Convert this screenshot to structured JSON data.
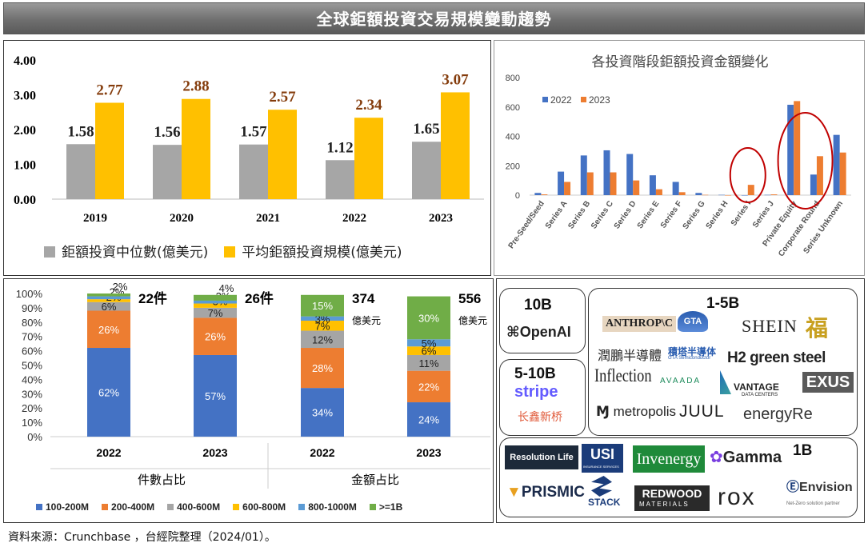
{
  "banner": {
    "title": "全球鉅額投資交易規模變動趨勢"
  },
  "source_note": "資料來源：Crunchbase ，台經院整理（2024/01）。",
  "chart_data": [
    {
      "type": "bar",
      "categories": [
        "2019",
        "2020",
        "2021",
        "2022",
        "2023"
      ],
      "series": [
        {
          "name": "鉅額投資中位數(億美元)",
          "color": "#a6a6a6",
          "values": [
            1.58,
            1.56,
            1.57,
            1.12,
            1.65
          ]
        },
        {
          "name": "平均鉅額投資規模(億美元)",
          "color": "#ffc000",
          "values": [
            2.77,
            2.88,
            2.57,
            2.34,
            3.07
          ]
        }
      ],
      "ylim": [
        0,
        4
      ],
      "yticks": [
        "0.00",
        "1.00",
        "2.00",
        "3.00",
        "4.00"
      ],
      "data_labels": [
        [
          "1.58",
          "1.56",
          "1.57",
          "1.12",
          "1.65"
        ],
        [
          "2.77",
          "2.88",
          "2.57",
          "2.34",
          "3.07"
        ]
      ],
      "label_colors": [
        "#222222",
        "#843c0c"
      ],
      "grid": false,
      "legend_position": "bottom"
    },
    {
      "type": "bar",
      "title": "各投資階段鉅額投資金額變化",
      "categories": [
        "Pre-Seed/Seed",
        "Series A",
        "Series B",
        "Series C",
        "Series D",
        "Series E",
        "Series F",
        "Series G",
        "Series H",
        "Series I",
        "Series J",
        "Private Equity",
        "Corporate Round",
        "Series Unknown"
      ],
      "series": [
        {
          "name": "2022",
          "color": "#4472c4",
          "values": [
            15,
            160,
            270,
            305,
            280,
            135,
            90,
            15,
            2,
            0,
            2,
            615,
            140,
            410
          ]
        },
        {
          "name": "2023",
          "color": "#ed7d31",
          "values": [
            5,
            90,
            155,
            155,
            100,
            40,
            20,
            2,
            0,
            70,
            5,
            640,
            265,
            290
          ]
        }
      ],
      "ylim": [
        0,
        800
      ],
      "yticks": [
        "0",
        "200",
        "400",
        "600",
        "800"
      ],
      "grid": false,
      "legend_position": "top-left",
      "highlighted_categories": [
        "Series I",
        "Private Equity",
        "Corporate Round"
      ]
    },
    {
      "type": "bar",
      "stacked": "percent",
      "groups": [
        {
          "label": "件數占比",
          "years": [
            "2022",
            "2023"
          ],
          "totals": [
            "22件",
            "26件"
          ]
        },
        {
          "label": "金額占比",
          "years": [
            "2022",
            "2023"
          ],
          "totals": [
            "374",
            "556"
          ],
          "unit": "億美元"
        }
      ],
      "series": [
        {
          "name": "100-200M",
          "color": "#4472c4",
          "values": [
            62,
            57,
            34,
            24
          ]
        },
        {
          "name": "200-400M",
          "color": "#ed7d31",
          "values": [
            26,
            26,
            28,
            22
          ]
        },
        {
          "name": "400-600M",
          "color": "#a5a5a5",
          "values": [
            6,
            7,
            12,
            11
          ]
        },
        {
          "name": "600-800M",
          "color": "#ffc000",
          "values": [
            2,
            3,
            7,
            6
          ]
        },
        {
          "name": "800-1000M",
          "color": "#5b9bd5",
          "values": [
            2,
            2,
            3,
            5
          ]
        },
        {
          "name": ">=1B",
          "color": "#70ad47",
          "values": [
            2,
            4,
            15,
            30
          ]
        }
      ],
      "yticks": [
        "0%",
        "10%",
        "20%",
        "30%",
        "40%",
        "50%",
        "60%",
        "70%",
        "80%",
        "90%",
        "100%"
      ],
      "legend_position": "bottom"
    }
  ],
  "logos": {
    "tiers": [
      "10B",
      "1-5B",
      "5-10B",
      "1B"
    ],
    "names": [
      "OpenAI",
      "ANTHROP\\C",
      "GTA",
      "SHEIN",
      "福",
      "潤鵬半導體",
      "積塔半導体",
      "GTA Semiconductor",
      "H2 green steel",
      "Inflection",
      "AVAADA",
      "VANTAGE",
      "DATA CENTERS",
      "EXUS",
      "metropolis",
      "JUUL",
      "energyRe",
      "stripe",
      "长鑫新桥",
      "Resolution Life",
      "USI",
      "INSURANCE SERVICES",
      "Invenergy",
      "Gamma",
      "PRISMIC",
      "STACK",
      "REDWOOD",
      "MATERIALS",
      "rox",
      "Envision",
      "Net-Zero solution partner"
    ]
  }
}
